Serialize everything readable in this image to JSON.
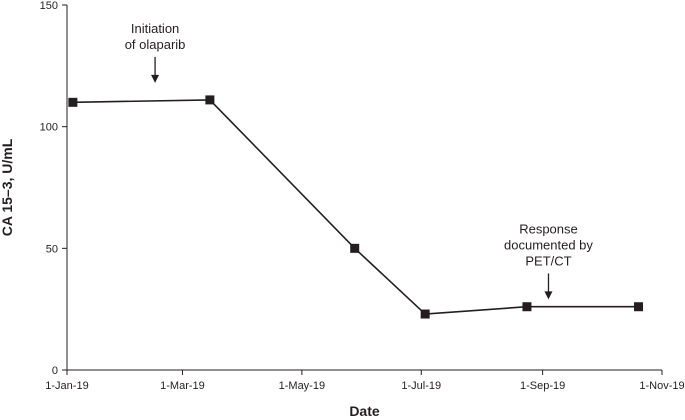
{
  "chart_data": {
    "type": "line",
    "title": "",
    "xlabel": "Date",
    "ylabel": "CA 15–3, U/mL",
    "x_ticks": [
      "1-Jan-19",
      "1-Mar-19",
      "1-May-19",
      "1-Jul-19",
      "1-Sep-19",
      "1-Nov-19"
    ],
    "y_ticks": [
      "0",
      "50",
      "100",
      "150"
    ],
    "ylim": [
      0,
      150
    ],
    "xlim": [
      "2019-01-01",
      "2019-11-01"
    ],
    "grid": false,
    "series": [
      {
        "points": [
          {
            "x": "2019-01-04",
            "y": 110
          },
          {
            "x": "2019-03-15",
            "y": 111
          },
          {
            "x": "2019-05-28",
            "y": 50
          },
          {
            "x": "2019-07-03",
            "y": 23
          },
          {
            "x": "2019-08-24",
            "y": 26
          },
          {
            "x": "2019-10-20",
            "y": 26
          }
        ],
        "color": "#231f20",
        "marker": "square"
      }
    ],
    "annotations": [
      {
        "lines": [
          "Initiation",
          "of olaparib"
        ],
        "x": "2019-02-15",
        "y": 118
      },
      {
        "lines": [
          "Response",
          "documented by",
          "PET/CT"
        ],
        "x": "2019-09-04",
        "y": 29
      }
    ]
  }
}
